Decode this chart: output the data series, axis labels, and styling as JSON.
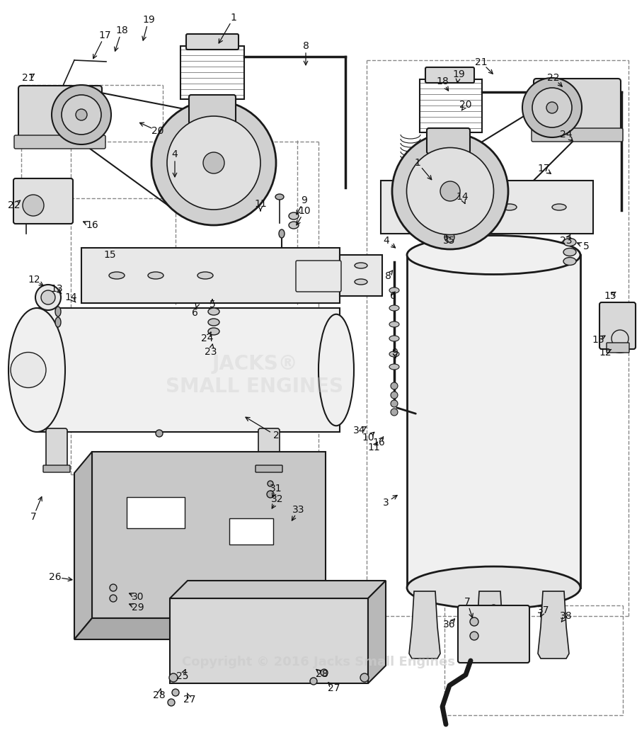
{
  "background_color": "#ffffff",
  "line_color": "#1a1a1a",
  "label_color": "#111111",
  "dashed_color": "#666666",
  "tank_fill": "#f0f0f0",
  "tank_stroke": "#222222",
  "component_fill": "#e0e0e0",
  "component_stroke": "#222222",
  "fin_dark": "#555555",
  "fin_light": "#cccccc",
  "watermark_text": "Copyright © 2016 Jacks Small Engines",
  "watermark_color": "#cccccc",
  "jacks_text": "JACKS®\nSMALL ENGINES",
  "left_labels": [
    [
      1,
      330,
      25,
      305,
      68
    ],
    [
      2,
      390,
      615,
      340,
      585
    ],
    [
      4,
      247,
      218,
      247,
      258
    ],
    [
      5,
      300,
      430,
      300,
      418
    ],
    [
      6,
      275,
      442,
      278,
      432
    ],
    [
      7,
      47,
      730,
      62,
      694
    ],
    [
      8,
      432,
      65,
      432,
      100
    ],
    [
      9,
      430,
      283,
      415,
      310
    ],
    [
      10,
      430,
      298,
      415,
      325
    ],
    [
      11,
      368,
      288,
      368,
      305
    ],
    [
      12,
      48,
      395,
      68,
      408
    ],
    [
      13,
      80,
      408,
      90,
      418
    ],
    [
      14,
      100,
      420,
      110,
      430
    ],
    [
      15,
      155,
      360,
      155,
      350
    ],
    [
      16,
      130,
      318,
      110,
      310
    ],
    [
      17,
      148,
      50,
      128,
      90
    ],
    [
      18,
      172,
      43,
      160,
      80
    ],
    [
      19,
      210,
      28,
      200,
      65
    ],
    [
      20,
      223,
      185,
      190,
      170
    ],
    [
      21,
      40,
      110,
      55,
      100
    ],
    [
      22,
      20,
      290,
      35,
      278
    ],
    [
      23,
      298,
      497,
      302,
      478
    ],
    [
      24,
      293,
      478,
      302,
      462
    ]
  ],
  "right_labels": [
    [
      1,
      590,
      230,
      615,
      260
    ],
    [
      3,
      545,
      710,
      568,
      695
    ],
    [
      4,
      546,
      340,
      565,
      355
    ],
    [
      5,
      828,
      348,
      808,
      340
    ],
    [
      6,
      555,
      418,
      560,
      408
    ],
    [
      7,
      660,
      850,
      670,
      880
    ],
    [
      8,
      548,
      390,
      558,
      378
    ],
    [
      9,
      558,
      498,
      560,
      510
    ],
    [
      10,
      520,
      618,
      535,
      605
    ],
    [
      11,
      528,
      632,
      538,
      618
    ],
    [
      12,
      855,
      498,
      870,
      490
    ],
    [
      13,
      845,
      480,
      862,
      470
    ],
    [
      14,
      653,
      278,
      660,
      295
    ],
    [
      15,
      862,
      418,
      876,
      408
    ],
    [
      16,
      535,
      625,
      545,
      613
    ],
    [
      17,
      768,
      238,
      785,
      250
    ],
    [
      18,
      625,
      115,
      638,
      135
    ],
    [
      19,
      648,
      105,
      645,
      125
    ],
    [
      20,
      658,
      148,
      648,
      162
    ],
    [
      21,
      680,
      88,
      702,
      110
    ],
    [
      22,
      782,
      110,
      800,
      128
    ],
    [
      23,
      800,
      340,
      810,
      325
    ],
    [
      24,
      800,
      190,
      815,
      205
    ],
    [
      34,
      508,
      608,
      522,
      600
    ],
    [
      35,
      635,
      340,
      628,
      328
    ]
  ],
  "condenser_labels": [
    [
      25,
      258,
      955,
      265,
      938
    ],
    [
      26,
      78,
      815,
      110,
      820
    ],
    [
      27,
      268,
      988,
      263,
      975
    ],
    [
      28,
      225,
      982,
      228,
      968
    ],
    [
      29,
      195,
      858,
      175,
      850
    ],
    [
      30,
      195,
      843,
      175,
      835
    ],
    [
      31,
      390,
      690,
      382,
      710
    ],
    [
      32,
      392,
      705,
      380,
      725
    ],
    [
      33,
      422,
      720,
      408,
      742
    ],
    [
      27,
      472,
      972,
      458,
      958
    ],
    [
      28,
      455,
      952,
      443,
      942
    ]
  ],
  "bottom_right_labels": [
    [
      36,
      635,
      882,
      648,
      868
    ],
    [
      37,
      768,
      862,
      760,
      878
    ],
    [
      38,
      800,
      870,
      790,
      882
    ]
  ]
}
